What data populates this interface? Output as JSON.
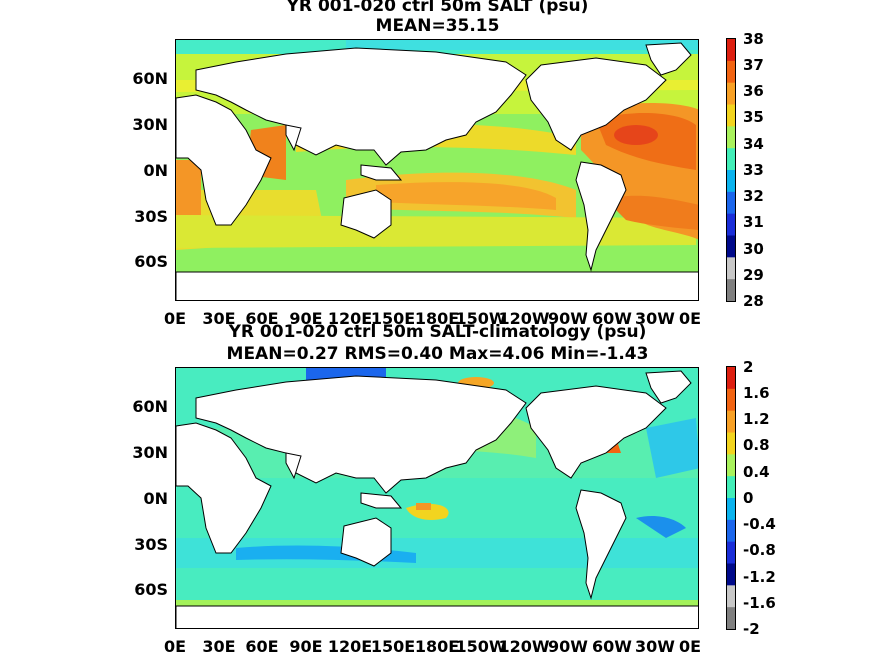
{
  "panels": [
    {
      "title_line1": "YR 001-020 ctrl 50m SALT (psu)",
      "title_line2": "MEAN=35.15",
      "colorbar_ticks": [
        "38",
        "37",
        "36",
        "35",
        "34",
        "33",
        "32",
        "31",
        "30",
        "29",
        "28"
      ],
      "colorbar_colors": [
        "#dd1f10",
        "#f26412",
        "#f8a126",
        "#f2d41f",
        "#a9f25d",
        "#42eeb8",
        "#0bb3ee",
        "#1b66ec",
        "#1a2ed8",
        "#000a8a",
        "#c8c8c8",
        "#808080"
      ]
    },
    {
      "title_line1": "YR 001-020 ctrl 50m SALT-climatology (psu)",
      "title_line2": "MEAN=0.27   RMS=0.40   Max=4.06   Min=-1.43",
      "colorbar_ticks": [
        "2",
        "1.6",
        "1.2",
        "0.8",
        "0.4",
        "0",
        "-0.4",
        "-0.8",
        "-1.2",
        "-1.6",
        "-2"
      ],
      "colorbar_colors": [
        "#dd1f10",
        "#f26412",
        "#f8a126",
        "#f2d41f",
        "#a9f25d",
        "#42eeb8",
        "#0bb3ee",
        "#1b66ec",
        "#1a2ed8",
        "#000a8a",
        "#c8c8c8",
        "#808080"
      ]
    }
  ],
  "lat_labels": [
    "60N",
    "30N",
    "0N",
    "30S",
    "60S"
  ],
  "lon_labels": [
    "0E",
    "30E",
    "60E",
    "90E",
    "120E",
    "150E",
    "180E",
    "150W",
    "120W",
    "90W",
    "60W",
    "30W",
    "0E"
  ]
}
